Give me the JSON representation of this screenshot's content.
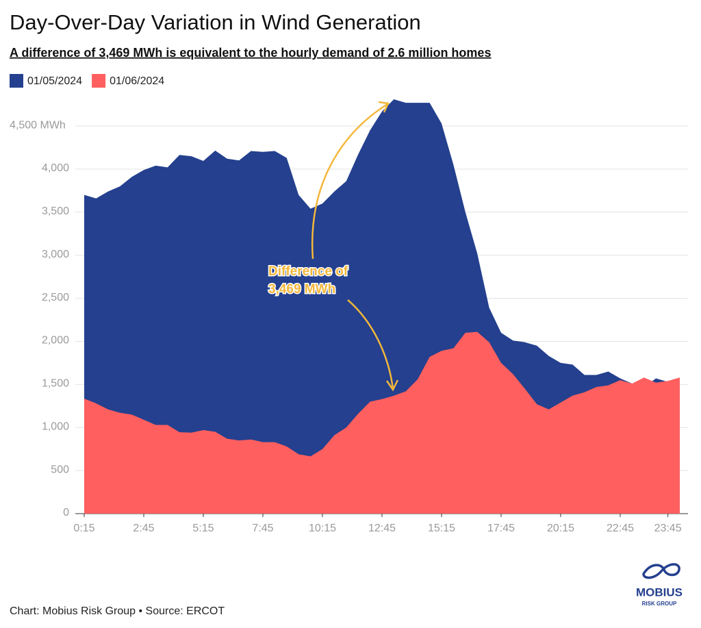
{
  "chart_data": {
    "type": "area",
    "title": "Day-Over-Day Variation in Wind Generation",
    "subtitle": "A difference of 3,469 MWh is equivalent to the hourly demand of 2.6 million homes",
    "categories": [
      "0:15",
      null,
      null,
      null,
      null,
      "2:45",
      null,
      null,
      null,
      null,
      "5:15",
      null,
      null,
      null,
      null,
      "7:45",
      null,
      null,
      null,
      null,
      "10:15",
      null,
      null,
      null,
      null,
      "12:45",
      null,
      null,
      null,
      null,
      "15:15",
      null,
      null,
      null,
      null,
      "17:45",
      null,
      null,
      null,
      null,
      "20:15",
      null,
      null,
      null,
      null,
      "22:45",
      null,
      null,
      null,
      "23:45",
      null
    ],
    "series": [
      {
        "name": "01/05/2024",
        "color": "#24408e",
        "values": [
          3700,
          3660,
          3740,
          3800,
          3910,
          3990,
          4040,
          4020,
          4165,
          4150,
          4095,
          4215,
          4120,
          4100,
          4210,
          4200,
          4210,
          4130,
          3700,
          3540,
          3600,
          3740,
          3860,
          4170,
          4450,
          4670,
          4810,
          4770,
          4770,
          4770,
          4530,
          4050,
          3500,
          3020,
          2390,
          2100,
          2010,
          1990,
          1950,
          1830,
          1750,
          1730,
          1610,
          1610,
          1650,
          1570,
          1510,
          1470,
          1570,
          1530,
          1575
        ]
      },
      {
        "name": "01/06/2024",
        "color": "#ff5f5f",
        "values": [
          1335,
          1280,
          1210,
          1170,
          1150,
          1090,
          1030,
          1030,
          945,
          940,
          970,
          950,
          870,
          850,
          860,
          830,
          830,
          780,
          690,
          665,
          750,
          910,
          1000,
          1160,
          1300,
          1330,
          1370,
          1420,
          1560,
          1820,
          1890,
          1920,
          2100,
          2110,
          1990,
          1750,
          1620,
          1450,
          1270,
          1210,
          1290,
          1370,
          1410,
          1470,
          1490,
          1550,
          1510,
          1580,
          1520,
          1540,
          1580
        ]
      }
    ],
    "ylim": [
      0,
      4800
    ],
    "yticks": [
      0,
      500,
      {
        "value": 1000,
        "label": "1,000"
      },
      {
        "value": 1500,
        "label": "1,500"
      },
      {
        "value": 2000,
        "label": "2,000"
      },
      {
        "value": 2500,
        "label": "2,500"
      },
      {
        "value": 3000,
        "label": "3,000"
      },
      {
        "value": 3500,
        "label": "3,500"
      },
      {
        "value": 4000,
        "label": "4,000"
      },
      {
        "value": 4500,
        "label": "4,500 MWh"
      }
    ],
    "grid": true,
    "legend": "top-left",
    "annotation": [
      "Difference of",
      "3,469 MWh"
    ],
    "source": "Chart: Mobius Risk Group • Source: ERCOT",
    "logo": {
      "name": "MOBIUS",
      "tagline": "RISK GROUP"
    }
  }
}
